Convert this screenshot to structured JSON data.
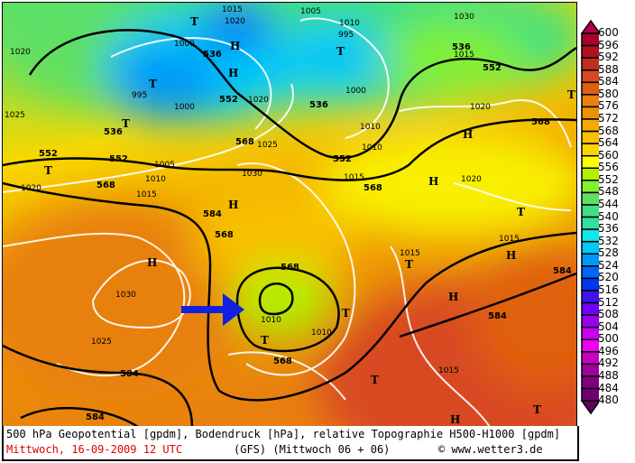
{
  "caption": {
    "line1": "500 hPa Geopotential [gpdm], Bodendruck [hPa], relative Topographie H500-H1000 [gpdm]",
    "date": "Mittwoch, 16-09-2009  12 UTC",
    "model": "(GFS)  (Mittwoch 06 + 06)",
    "copyright": "© www.wetter3.de"
  },
  "colors": {
    "date_text": "#e00000",
    "arrow": "#1020e0"
  },
  "arrow_icon": "arrow-right-icon",
  "legend": {
    "labels": [
      "600",
      "596",
      "592",
      "588",
      "584",
      "580",
      "576",
      "572",
      "568",
      "564",
      "560",
      "556",
      "552",
      "548",
      "544",
      "540",
      "536",
      "532",
      "528",
      "524",
      "520",
      "516",
      "512",
      "508",
      "504",
      "500",
      "496",
      "492",
      "488",
      "484",
      "480"
    ],
    "top_color": "#b00050",
    "bottom_color": "#600060",
    "colors": [
      "#a80030",
      "#b01020",
      "#c03020",
      "#d84820",
      "#e06010",
      "#e88010",
      "#f09000",
      "#f8a800",
      "#f8c000",
      "#f8d800",
      "#ffff00",
      "#b0f000",
      "#80f030",
      "#60e060",
      "#40e080",
      "#30e0a0",
      "#10e8e8",
      "#00c8f8",
      "#0098f8",
      "#0068f8",
      "#0038f0",
      "#4010f8",
      "#7000f8",
      "#9800f0",
      "#c800f0",
      "#f000f0",
      "#c800c0",
      "#a000a0",
      "#800080",
      "#700070"
    ]
  },
  "map": {
    "geopotential_labels": [
      "536",
      "552",
      "568",
      "584",
      "536",
      "552",
      "568",
      "536",
      "552",
      "536",
      "552",
      "568",
      "568",
      "552",
      "584",
      "568",
      "568",
      "584",
      "584",
      "584",
      "568"
    ],
    "pressure_labels": [
      "1015",
      "1020",
      "1005",
      "995",
      "1010",
      "1000",
      "995",
      "1000",
      "1000",
      "1020",
      "1025",
      "1005",
      "1010",
      "1015",
      "1030",
      "1030",
      "1020",
      "1025",
      "1015",
      "1010",
      "1010",
      "1020",
      "1015",
      "1015",
      "1020",
      "1025",
      "1030",
      "1015",
      "1010",
      "1010",
      "1020",
      "1015"
    ],
    "pressure_centers": [
      "T",
      "H",
      "T",
      "T",
      "T",
      "T",
      "H",
      "H",
      "T",
      "H",
      "H",
      "T",
      "H",
      "H",
      "T",
      "T",
      "T",
      "T",
      "H",
      "T",
      "H"
    ]
  }
}
